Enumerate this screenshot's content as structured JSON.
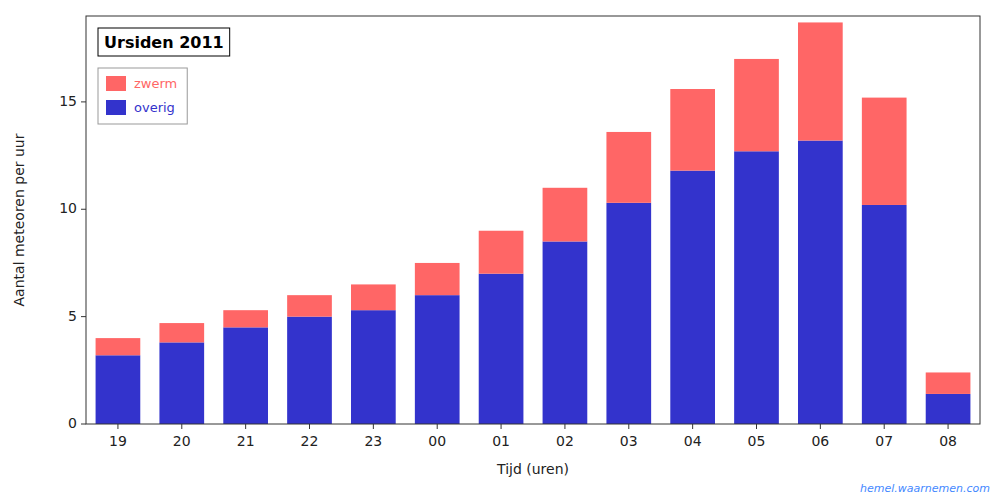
{
  "chart_data": {
    "type": "bar",
    "stacked": true,
    "title": "Ursiden 2011",
    "x_label": "Tijd (uren)",
    "y_label": "Aantal meteoren per uur",
    "categories": [
      "19",
      "20",
      "21",
      "22",
      "23",
      "00",
      "01",
      "02",
      "03",
      "04",
      "05",
      "06",
      "07",
      "08"
    ],
    "series": [
      {
        "name": "overig",
        "color": "#3333cc",
        "values": [
          3.2,
          3.8,
          4.5,
          5.0,
          5.3,
          6.0,
          7.0,
          8.5,
          10.3,
          11.8,
          12.7,
          13.2,
          10.2,
          1.4
        ]
      },
      {
        "name": "zwerm",
        "color": "#ff6666",
        "values": [
          0.8,
          0.9,
          0.8,
          1.0,
          1.2,
          1.5,
          2.0,
          2.5,
          3.3,
          3.8,
          4.3,
          5.5,
          5.0,
          1.0
        ]
      }
    ],
    "ylim": [
      0,
      19
    ],
    "yticks": [
      0,
      5,
      10,
      15
    ],
    "grid": false,
    "legend": "upper left",
    "annotations": [
      "hemel.waarnemen.com"
    ]
  }
}
